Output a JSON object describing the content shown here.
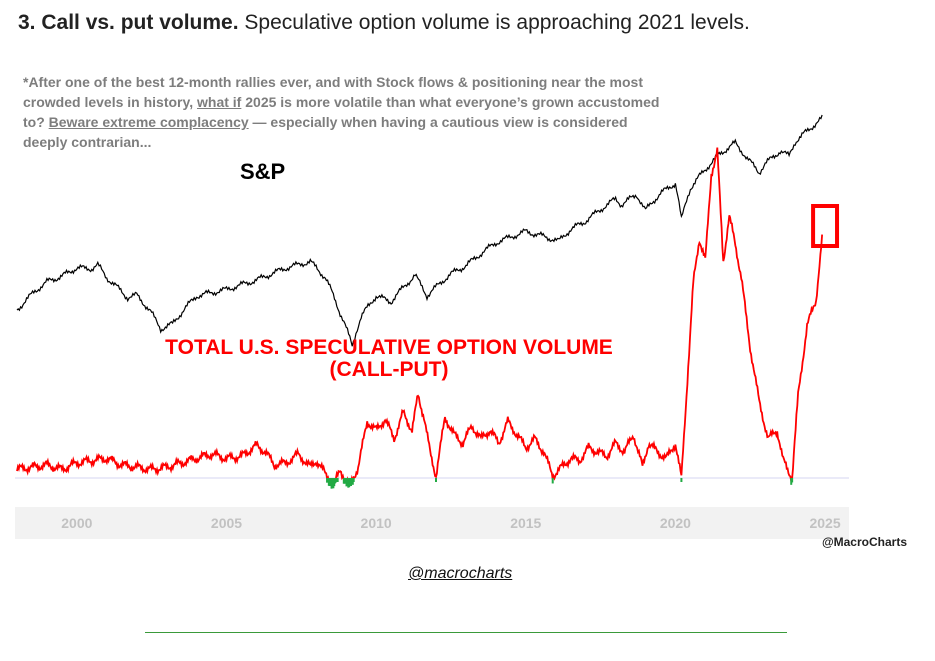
{
  "heading": {
    "number_title": "3. Call vs. put volume.",
    "subtitle": "Speculative option volume is approaching 2021 levels."
  },
  "note": {
    "part1": "*After one of the best 12-month rallies ever, and with Stock flows & positioning near the most crowded levels in history, ",
    "link1": "what if",
    "part2": " 2025 is more volatile than what everyone’s grown accustomed to? ",
    "link2": "Beware extreme complacency",
    "part3": " — especially when having a cautious view is considered deeply contrarian..."
  },
  "footer": {
    "handle": "@macrocharts"
  },
  "colors": {
    "sp_line": "#000000",
    "option_line": "#ff0000",
    "low_extreme": "#22aa44",
    "highlight_box": "#ff0000",
    "axis_band": "#f2f2f2"
  },
  "chart_data": {
    "type": "line",
    "title": "",
    "xlabel": "",
    "ylabel": "",
    "xlim": [
      1998.0,
      2025.8
    ],
    "x_ticks": [
      "2000",
      "2005",
      "2010",
      "2015",
      "2020",
      "2025"
    ],
    "watermark": "@MacroCharts",
    "highlight": {
      "x": [
        2024.6,
        2025.4
      ],
      "series": "option_volume",
      "label": ""
    },
    "series": [
      {
        "name": "S&P",
        "role": "sp",
        "scale": "log",
        "ylim": [
          600,
          7000
        ],
        "x": [
          1998.0,
          1998.6,
          1999.0,
          1999.5,
          2000.0,
          2000.5,
          2000.7,
          2001.0,
          2001.7,
          2002.0,
          2002.5,
          2002.8,
          2003.2,
          2004.0,
          2005.0,
          2006.0,
          2007.0,
          2007.8,
          2008.3,
          2008.8,
          2009.2,
          2009.5,
          2010.0,
          2010.5,
          2011.3,
          2011.7,
          2012.5,
          2013.0,
          2014.0,
          2015.0,
          2015.7,
          2016.1,
          2016.5,
          2017.0,
          2018.0,
          2018.2,
          2018.7,
          2019.0,
          2019.5,
          2020.0,
          2020.2,
          2020.5,
          2021.0,
          2021.5,
          2022.0,
          2022.4,
          2022.8,
          2023.0,
          2023.5,
          2023.8,
          2024.0,
          2024.5,
          2024.9
        ],
        "values": [
          980,
          1170,
          1280,
          1350,
          1460,
          1450,
          1500,
          1330,
          1100,
          1130,
          950,
          820,
          860,
          1120,
          1190,
          1300,
          1460,
          1550,
          1330,
          950,
          700,
          920,
          1120,
          1060,
          1360,
          1120,
          1380,
          1490,
          1850,
          2060,
          1950,
          1880,
          2100,
          2270,
          2800,
          2650,
          2920,
          2510,
          2950,
          3250,
          2300,
          3100,
          3700,
          4300,
          4750,
          4100,
          3600,
          3900,
          4400,
          4200,
          4800,
          5450,
          6000
        ]
      },
      {
        "name": "TOTAL U.S. SPECULATIVE OPTION VOLUME (CALL-PUT)",
        "role": "option_volume",
        "ylim": [
          -15,
          160
        ],
        "baseline": 0,
        "x": [
          1998.0,
          1998.5,
          1999.0,
          1999.5,
          2000.0,
          2000.5,
          2001.0,
          2001.5,
          2002.0,
          2002.5,
          2003.0,
          2003.5,
          2004.0,
          2004.5,
          2005.0,
          2005.5,
          2006.0,
          2006.3,
          2006.6,
          2007.0,
          2007.4,
          2007.8,
          2008.0,
          2008.3,
          2008.6,
          2008.8,
          2009.1,
          2009.4,
          2009.7,
          2010.0,
          2010.3,
          2010.6,
          2010.9,
          2011.2,
          2011.4,
          2011.6,
          2011.8,
          2012.0,
          2012.3,
          2012.6,
          2012.9,
          2013.2,
          2013.5,
          2013.8,
          2014.1,
          2014.4,
          2014.7,
          2015.0,
          2015.3,
          2015.6,
          2015.9,
          2016.2,
          2016.5,
          2016.8,
          2017.1,
          2017.4,
          2017.7,
          2018.0,
          2018.3,
          2018.6,
          2018.9,
          2019.1,
          2019.4,
          2019.7,
          2020.0,
          2020.2,
          2020.4,
          2020.6,
          2020.8,
          2021.0,
          2021.2,
          2021.4,
          2021.6,
          2021.8,
          2022.0,
          2022.2,
          2022.5,
          2022.8,
          2023.1,
          2023.4,
          2023.6,
          2023.9,
          2024.1,
          2024.4,
          2024.7,
          2024.9
        ],
        "values": [
          4,
          5,
          6,
          4,
          7,
          8,
          9,
          6,
          5,
          4,
          5,
          7,
          9,
          11,
          9,
          10,
          15,
          12,
          6,
          7,
          11,
          5,
          8,
          2,
          -3,
          4,
          -4,
          5,
          26,
          22,
          27,
          18,
          30,
          22,
          38,
          28,
          12,
          1,
          28,
          20,
          16,
          24,
          18,
          22,
          16,
          26,
          20,
          14,
          18,
          12,
          1,
          5,
          9,
          8,
          14,
          12,
          10,
          16,
          12,
          20,
          5,
          16,
          12,
          9,
          16,
          0,
          45,
          90,
          110,
          100,
          140,
          150,
          100,
          120,
          108,
          92,
          60,
          35,
          18,
          22,
          8,
          0,
          38,
          70,
          82,
          110
        ]
      }
    ]
  }
}
